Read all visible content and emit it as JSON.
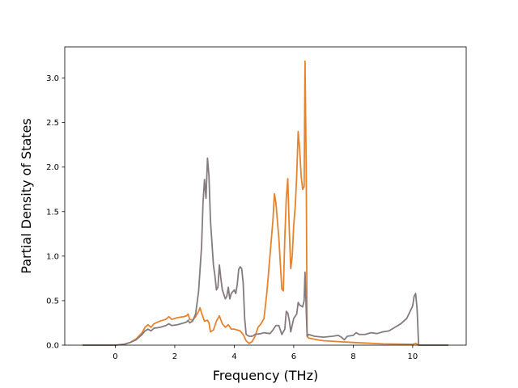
{
  "chart_data": {
    "type": "line",
    "title": "",
    "xlabel": "Frequency (THz)",
    "ylabel": "Partial Density of States",
    "xlim": [
      -1.7,
      11.8
    ],
    "ylim": [
      0.0,
      3.35
    ],
    "xticks": [
      0,
      2,
      4,
      6,
      8,
      10
    ],
    "xtick_labels": [
      "0",
      "2",
      "4",
      "6",
      "8",
      "10"
    ],
    "yticks": [
      0.0,
      0.5,
      1.0,
      1.5,
      2.0,
      2.5,
      3.0
    ],
    "ytick_labels": [
      "0.0",
      "0.5",
      "1.0",
      "1.5",
      "2.0",
      "2.5",
      "3.0"
    ],
    "grid": false,
    "legend": "none",
    "series": [
      {
        "color": "#e6832d",
        "points": [
          [
            -1.1,
            0
          ],
          [
            0,
            0
          ],
          [
            0.3,
            0.01
          ],
          [
            0.5,
            0.03
          ],
          [
            0.7,
            0.07
          ],
          [
            0.9,
            0.14
          ],
          [
            1.0,
            0.2
          ],
          [
            1.1,
            0.23
          ],
          [
            1.2,
            0.2
          ],
          [
            1.3,
            0.24
          ],
          [
            1.5,
            0.27
          ],
          [
            1.7,
            0.29
          ],
          [
            1.8,
            0.32
          ],
          [
            1.9,
            0.29
          ],
          [
            2.1,
            0.31
          ],
          [
            2.3,
            0.32
          ],
          [
            2.4,
            0.33
          ],
          [
            2.45,
            0.35
          ],
          [
            2.5,
            0.29
          ],
          [
            2.6,
            0.28
          ],
          [
            2.7,
            0.32
          ],
          [
            2.8,
            0.38
          ],
          [
            2.85,
            0.42
          ],
          [
            2.9,
            0.36
          ],
          [
            3.0,
            0.27
          ],
          [
            3.1,
            0.28
          ],
          [
            3.15,
            0.25
          ],
          [
            3.2,
            0.15
          ],
          [
            3.3,
            0.17
          ],
          [
            3.4,
            0.27
          ],
          [
            3.5,
            0.33
          ],
          [
            3.6,
            0.24
          ],
          [
            3.7,
            0.2
          ],
          [
            3.8,
            0.23
          ],
          [
            3.9,
            0.18
          ],
          [
            4.0,
            0.18
          ],
          [
            4.1,
            0.17
          ],
          [
            4.2,
            0.16
          ],
          [
            4.3,
            0.12
          ],
          [
            4.4,
            0.05
          ],
          [
            4.5,
            0.02
          ],
          [
            4.6,
            0.04
          ],
          [
            4.7,
            0.1
          ],
          [
            4.8,
            0.2
          ],
          [
            4.9,
            0.24
          ],
          [
            5.0,
            0.3
          ],
          [
            5.1,
            0.6
          ],
          [
            5.2,
            1.0
          ],
          [
            5.3,
            1.4
          ],
          [
            5.35,
            1.7
          ],
          [
            5.4,
            1.6
          ],
          [
            5.5,
            1.2
          ],
          [
            5.6,
            0.63
          ],
          [
            5.65,
            0.61
          ],
          [
            5.7,
            1.2
          ],
          [
            5.75,
            1.65
          ],
          [
            5.8,
            1.87
          ],
          [
            5.85,
            1.3
          ],
          [
            5.9,
            0.86
          ],
          [
            5.95,
            1.0
          ],
          [
            6.0,
            1.35
          ],
          [
            6.05,
            1.55
          ],
          [
            6.1,
            1.9
          ],
          [
            6.15,
            2.4
          ],
          [
            6.2,
            2.2
          ],
          [
            6.25,
            1.9
          ],
          [
            6.3,
            1.75
          ],
          [
            6.35,
            1.78
          ],
          [
            6.38,
            3.19
          ],
          [
            6.42,
            2.0
          ],
          [
            6.45,
            0.1
          ],
          [
            6.5,
            0.08
          ],
          [
            6.8,
            0.06
          ],
          [
            7.0,
            0.05
          ],
          [
            7.5,
            0.04
          ],
          [
            8.0,
            0.03
          ],
          [
            9.0,
            0.015
          ],
          [
            10.0,
            0.01
          ],
          [
            10.1,
            0.02
          ],
          [
            10.2,
            0.0
          ],
          [
            11.2,
            0
          ]
        ]
      },
      {
        "color": "#857b7f",
        "points": [
          [
            -1.1,
            0
          ],
          [
            0,
            0
          ],
          [
            0.3,
            0.01
          ],
          [
            0.5,
            0.03
          ],
          [
            0.7,
            0.06
          ],
          [
            0.9,
            0.12
          ],
          [
            1.0,
            0.16
          ],
          [
            1.1,
            0.18
          ],
          [
            1.2,
            0.16
          ],
          [
            1.3,
            0.19
          ],
          [
            1.5,
            0.2
          ],
          [
            1.7,
            0.22
          ],
          [
            1.8,
            0.24
          ],
          [
            1.9,
            0.22
          ],
          [
            2.1,
            0.23
          ],
          [
            2.3,
            0.25
          ],
          [
            2.4,
            0.26
          ],
          [
            2.45,
            0.28
          ],
          [
            2.5,
            0.25
          ],
          [
            2.6,
            0.27
          ],
          [
            2.7,
            0.35
          ],
          [
            2.8,
            0.6
          ],
          [
            2.9,
            1.1
          ],
          [
            2.95,
            1.6
          ],
          [
            3.0,
            1.86
          ],
          [
            3.05,
            1.65
          ],
          [
            3.1,
            2.1
          ],
          [
            3.15,
            1.9
          ],
          [
            3.2,
            1.4
          ],
          [
            3.3,
            0.9
          ],
          [
            3.35,
            0.78
          ],
          [
            3.4,
            0.62
          ],
          [
            3.45,
            0.65
          ],
          [
            3.5,
            0.9
          ],
          [
            3.55,
            0.75
          ],
          [
            3.6,
            0.62
          ],
          [
            3.7,
            0.52
          ],
          [
            3.75,
            0.55
          ],
          [
            3.8,
            0.65
          ],
          [
            3.85,
            0.52
          ],
          [
            3.9,
            0.58
          ],
          [
            4.0,
            0.62
          ],
          [
            4.05,
            0.58
          ],
          [
            4.1,
            0.68
          ],
          [
            4.15,
            0.85
          ],
          [
            4.2,
            0.88
          ],
          [
            4.25,
            0.86
          ],
          [
            4.3,
            0.7
          ],
          [
            4.35,
            0.3
          ],
          [
            4.4,
            0.12
          ],
          [
            4.5,
            0.1
          ],
          [
            4.6,
            0.1
          ],
          [
            4.7,
            0.12
          ],
          [
            4.9,
            0.13
          ],
          [
            5.0,
            0.14
          ],
          [
            5.2,
            0.13
          ],
          [
            5.3,
            0.17
          ],
          [
            5.4,
            0.22
          ],
          [
            5.5,
            0.22
          ],
          [
            5.6,
            0.12
          ],
          [
            5.7,
            0.18
          ],
          [
            5.75,
            0.38
          ],
          [
            5.8,
            0.36
          ],
          [
            5.85,
            0.28
          ],
          [
            5.9,
            0.15
          ],
          [
            6.0,
            0.3
          ],
          [
            6.1,
            0.35
          ],
          [
            6.15,
            0.48
          ],
          [
            6.2,
            0.45
          ],
          [
            6.3,
            0.43
          ],
          [
            6.35,
            0.5
          ],
          [
            6.38,
            0.82
          ],
          [
            6.42,
            0.4
          ],
          [
            6.45,
            0.1
          ],
          [
            6.5,
            0.12
          ],
          [
            6.7,
            0.1
          ],
          [
            7.0,
            0.09
          ],
          [
            7.3,
            0.1
          ],
          [
            7.5,
            0.11
          ],
          [
            7.6,
            0.09
          ],
          [
            7.7,
            0.06
          ],
          [
            7.8,
            0.1
          ],
          [
            8.0,
            0.11
          ],
          [
            8.1,
            0.14
          ],
          [
            8.2,
            0.12
          ],
          [
            8.4,
            0.12
          ],
          [
            8.6,
            0.14
          ],
          [
            8.8,
            0.13
          ],
          [
            9.0,
            0.15
          ],
          [
            9.2,
            0.16
          ],
          [
            9.4,
            0.2
          ],
          [
            9.6,
            0.24
          ],
          [
            9.8,
            0.3
          ],
          [
            10.0,
            0.44
          ],
          [
            10.05,
            0.55
          ],
          [
            10.1,
            0.58
          ],
          [
            10.15,
            0.4
          ],
          [
            10.2,
            0.0
          ],
          [
            11.2,
            0
          ]
        ]
      }
    ]
  }
}
